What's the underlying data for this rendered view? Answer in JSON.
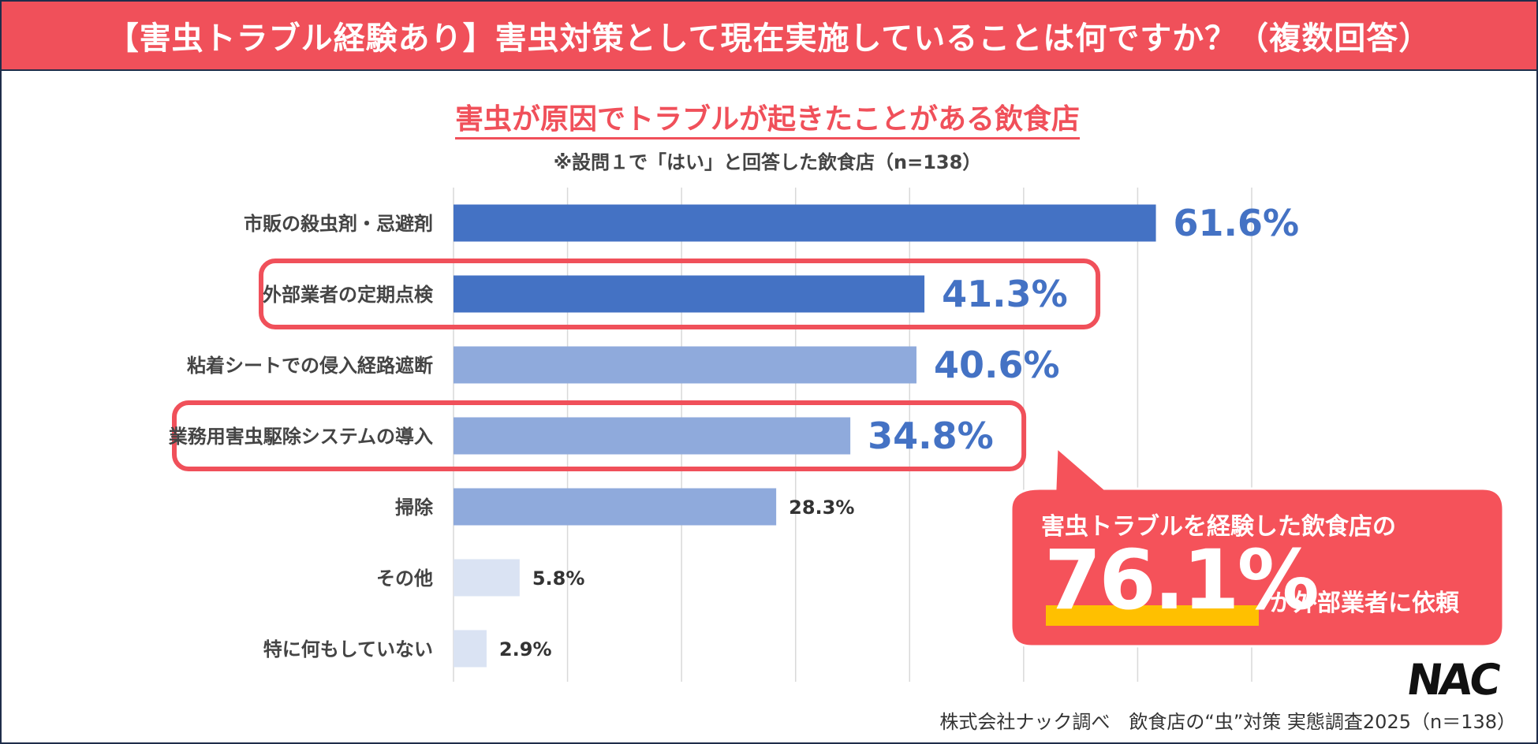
{
  "header": {
    "title": "【害虫トラブル経験あり】害虫対策として現在実施していることは何ですか？（複数回答）"
  },
  "chart_data": {
    "type": "bar",
    "orientation": "horizontal",
    "title": "害虫が原因でトラブルが起きたことがある飲食店",
    "subtitle": "※設問１で「はい」と回答した飲食店（n=138）",
    "categories": [
      "市販の殺虫剤・忌避剤",
      "外部業者の定期点検",
      "粘着シートでの侵入経路遮断",
      "業務用害虫駆除システムの導入",
      "掃除",
      "その他",
      "特に何もしていない"
    ],
    "values": [
      61.6,
      41.3,
      40.6,
      34.8,
      28.3,
      5.8,
      2.9
    ],
    "value_labels": [
      "61.6%",
      "41.3%",
      "40.6%",
      "34.8%",
      "28.3%",
      "5.8%",
      "2.9%"
    ],
    "highlighted": [
      "外部業者の定期点検",
      "業務用害虫駆除システムの導入"
    ],
    "xlim": [
      0,
      70
    ],
    "grid": true,
    "colors": {
      "dark": "#4472c4",
      "mid": "#8faadc",
      "light": "#dae3f3",
      "highlight_box": "#f0505a"
    }
  },
  "callout": {
    "line1": "害虫トラブルを経験した飲食店の",
    "big_value": "76.1%",
    "line3": "が外部業者に依頼",
    "bg_color": "#f5525a",
    "underline_color": "#ffc000"
  },
  "logo": {
    "text": "NAC"
  },
  "footer": {
    "source": "株式会社ナック調べ　飲食店の“虫”対策 実態調査2025（n＝138）"
  }
}
